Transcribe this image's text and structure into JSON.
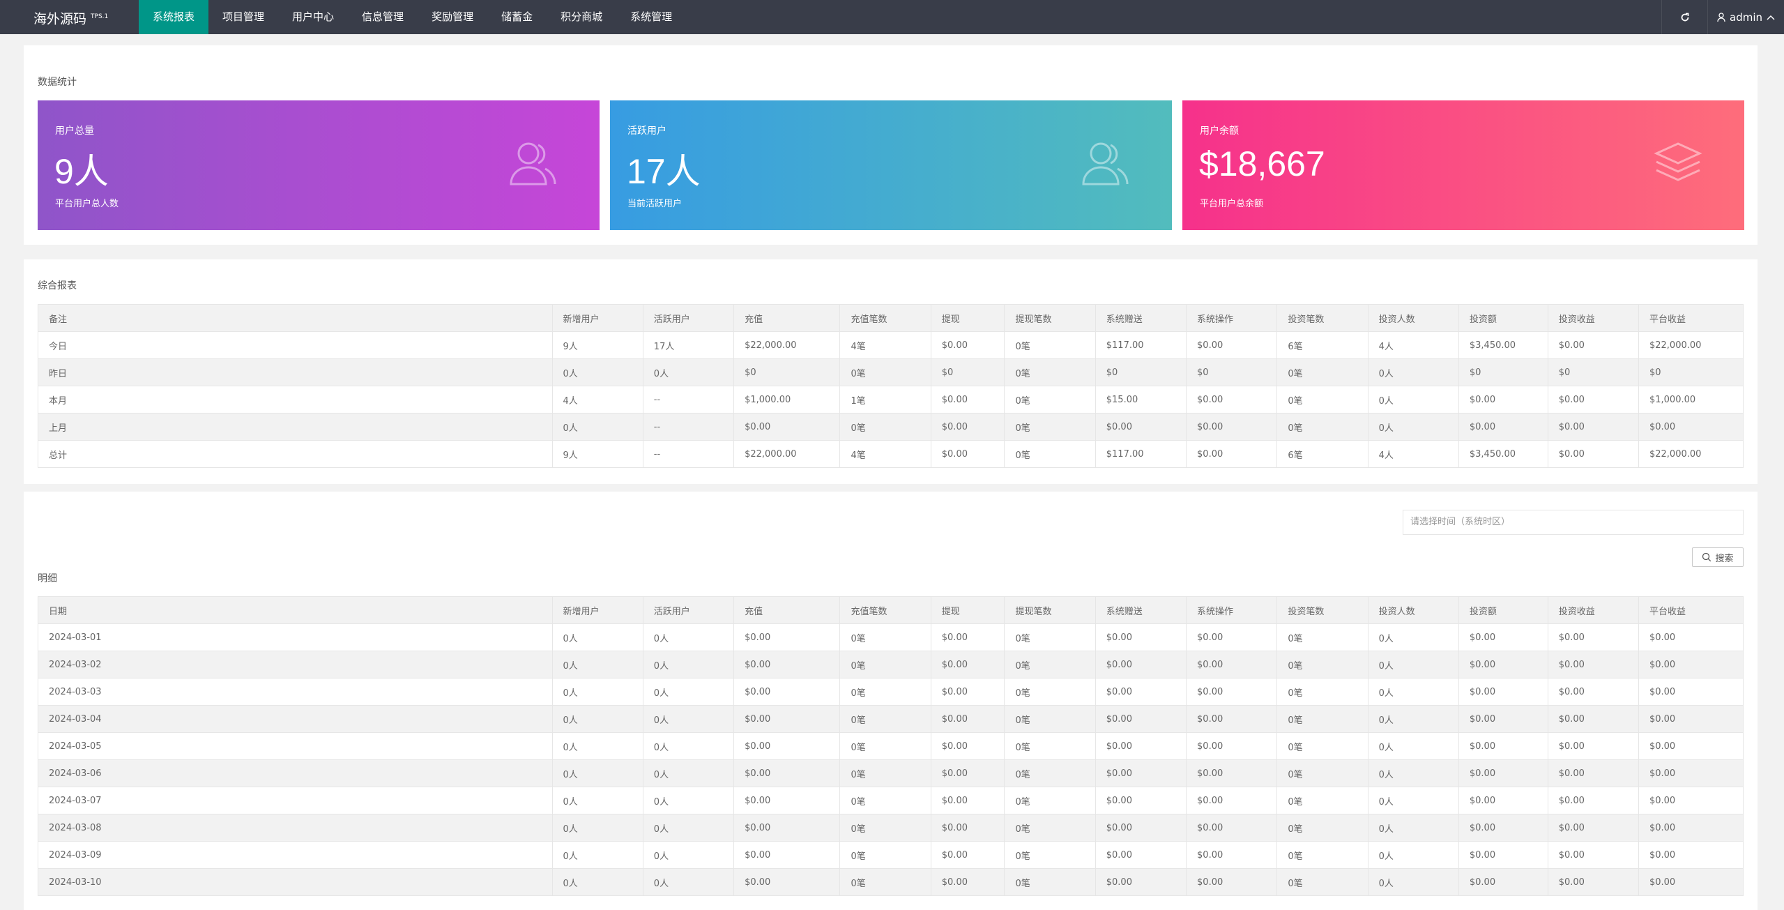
{
  "nav": {
    "brand": "海外源码",
    "version": "TPS.1",
    "menu": [
      "系统报表",
      "项目管理",
      "用户中心",
      "信息管理",
      "奖励管理",
      "储蓄金",
      "积分商城",
      "系统管理"
    ],
    "user": "admin"
  },
  "stats": {
    "title": "数据统计",
    "cards": [
      {
        "label": "用户总量",
        "value": "9人",
        "note": "平台用户总人数"
      },
      {
        "label": "活跃用户",
        "value": "17人",
        "note": "当前活跃用户"
      },
      {
        "label": "用户余额",
        "value": "$18,667",
        "note": "平台用户总余额"
      }
    ]
  },
  "summary": {
    "title": "综合报表",
    "headers": [
      "备注",
      "新增用户",
      "活跃用户",
      "充值",
      "充值笔数",
      "提现",
      "提现笔数",
      "系统赠送",
      "系统操作",
      "投资笔数",
      "投资人数",
      "投资额",
      "投资收益",
      "平台收益"
    ],
    "rows": [
      [
        "今日",
        "9人",
        "17人",
        "$22,000.00",
        "4笔",
        "$0.00",
        "0笔",
        "$117.00",
        "$0.00",
        "6笔",
        "4人",
        "$3,450.00",
        "$0.00",
        "$22,000.00"
      ],
      [
        "昨日",
        "0人",
        "0人",
        "$0",
        "0笔",
        "$0",
        "0笔",
        "$0",
        "$0",
        "0笔",
        "0人",
        "$0",
        "$0",
        "$0"
      ],
      [
        "本月",
        "4人",
        "--",
        "$1,000.00",
        "1笔",
        "$0.00",
        "0笔",
        "$15.00",
        "$0.00",
        "0笔",
        "0人",
        "$0.00",
        "$0.00",
        "$1,000.00"
      ],
      [
        "上月",
        "0人",
        "--",
        "$0.00",
        "0笔",
        "$0.00",
        "0笔",
        "$0.00",
        "$0.00",
        "0笔",
        "0人",
        "$0.00",
        "$0.00",
        "$0.00"
      ],
      [
        "总计",
        "9人",
        "--",
        "$22,000.00",
        "4笔",
        "$0.00",
        "0笔",
        "$117.00",
        "$0.00",
        "6笔",
        "4人",
        "$3,450.00",
        "$0.00",
        "$22,000.00"
      ]
    ]
  },
  "detail": {
    "placeholder": "请选择时间（系统时区）",
    "search": "搜索",
    "title": "明细",
    "headers": [
      "日期",
      "新增用户",
      "活跃用户",
      "充值",
      "充值笔数",
      "提现",
      "提现笔数",
      "系统赠送",
      "系统操作",
      "投资笔数",
      "投资人数",
      "投资额",
      "投资收益",
      "平台收益"
    ],
    "rows": [
      [
        "2024-03-01",
        "0人",
        "0人",
        "$0.00",
        "0笔",
        "$0.00",
        "0笔",
        "$0.00",
        "$0.00",
        "0笔",
        "0人",
        "$0.00",
        "$0.00",
        "$0.00"
      ],
      [
        "2024-03-02",
        "0人",
        "0人",
        "$0.00",
        "0笔",
        "$0.00",
        "0笔",
        "$0.00",
        "$0.00",
        "0笔",
        "0人",
        "$0.00",
        "$0.00",
        "$0.00"
      ],
      [
        "2024-03-03",
        "0人",
        "0人",
        "$0.00",
        "0笔",
        "$0.00",
        "0笔",
        "$0.00",
        "$0.00",
        "0笔",
        "0人",
        "$0.00",
        "$0.00",
        "$0.00"
      ],
      [
        "2024-03-04",
        "0人",
        "0人",
        "$0.00",
        "0笔",
        "$0.00",
        "0笔",
        "$0.00",
        "$0.00",
        "0笔",
        "0人",
        "$0.00",
        "$0.00",
        "$0.00"
      ],
      [
        "2024-03-05",
        "0人",
        "0人",
        "$0.00",
        "0笔",
        "$0.00",
        "0笔",
        "$0.00",
        "$0.00",
        "0笔",
        "0人",
        "$0.00",
        "$0.00",
        "$0.00"
      ],
      [
        "2024-03-06",
        "0人",
        "0人",
        "$0.00",
        "0笔",
        "$0.00",
        "0笔",
        "$0.00",
        "$0.00",
        "0笔",
        "0人",
        "$0.00",
        "$0.00",
        "$0.00"
      ],
      [
        "2024-03-07",
        "0人",
        "0人",
        "$0.00",
        "0笔",
        "$0.00",
        "0笔",
        "$0.00",
        "$0.00",
        "0笔",
        "0人",
        "$0.00",
        "$0.00",
        "$0.00"
      ],
      [
        "2024-03-08",
        "0人",
        "0人",
        "$0.00",
        "0笔",
        "$0.00",
        "0笔",
        "$0.00",
        "$0.00",
        "0笔",
        "0人",
        "$0.00",
        "$0.00",
        "$0.00"
      ],
      [
        "2024-03-09",
        "0人",
        "0人",
        "$0.00",
        "0笔",
        "$0.00",
        "0笔",
        "$0.00",
        "$0.00",
        "0笔",
        "0人",
        "$0.00",
        "$0.00",
        "$0.00"
      ],
      [
        "2024-03-10",
        "0人",
        "0人",
        "$0.00",
        "0笔",
        "$0.00",
        "0笔",
        "$0.00",
        "$0.00",
        "0笔",
        "0人",
        "$0.00",
        "$0.00",
        "$0.00"
      ]
    ]
  }
}
